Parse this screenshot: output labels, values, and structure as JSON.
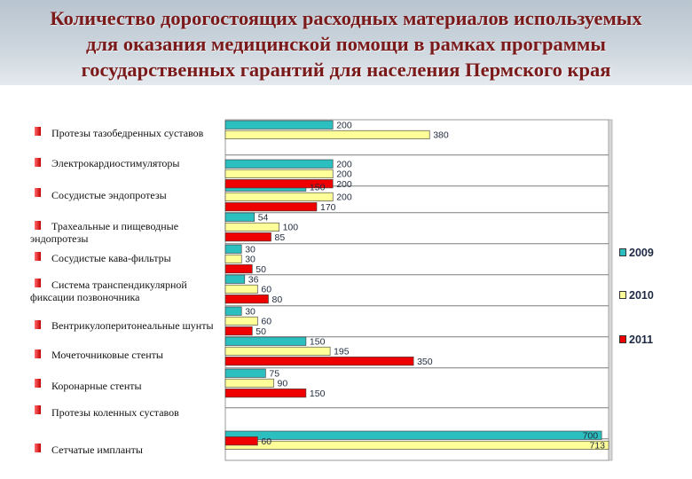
{
  "header": {
    "title_lines": [
      "Количество дорогостоящих расходных материалов используемых",
      "для оказания медицинской помощи в рамках программы",
      "государственных гарантий для населения Пермского края"
    ]
  },
  "chart_data": {
    "type": "bar",
    "orientation": "horizontal",
    "title": "Количество дорогостоящих расходных материалов используемых для оказания медицинской помощи в рамках программы государственных гарантий для населения Пермского края",
    "categories": [
      "Протезы тазобедренных суставов",
      "Электрокардиостимуляторы",
      "Сосудистые эндопротезы",
      "Трахеальные и пищеводные эндопротезы",
      "Сосудистые кава-фильтры",
      "Система транспендикулярной фиксации позвоночника",
      "Вентрикулоперитонеальные шунты",
      "Мочеточниковые стенты",
      "Коронарные стенты",
      "Протезы коленных суставов",
      "Сетчатые импланты"
    ],
    "series": [
      {
        "name": "2009",
        "color": "#2bbfbf",
        "values": [
          200,
          200,
          150,
          54,
          30,
          36,
          30,
          150,
          75,
          null,
          700
        ]
      },
      {
        "name": "2010",
        "color": "#ffff9a",
        "values": [
          380,
          200,
          200,
          100,
          30,
          60,
          60,
          195,
          90,
          null,
          713
        ]
      },
      {
        "name": "2011",
        "color": "#ee0000",
        "values": [
          null,
          200,
          170,
          85,
          50,
          80,
          50,
          350,
          150,
          60,
          null
        ]
      }
    ],
    "xlim": [
      0,
      713
    ],
    "grid": true,
    "legend_placement": "right"
  }
}
